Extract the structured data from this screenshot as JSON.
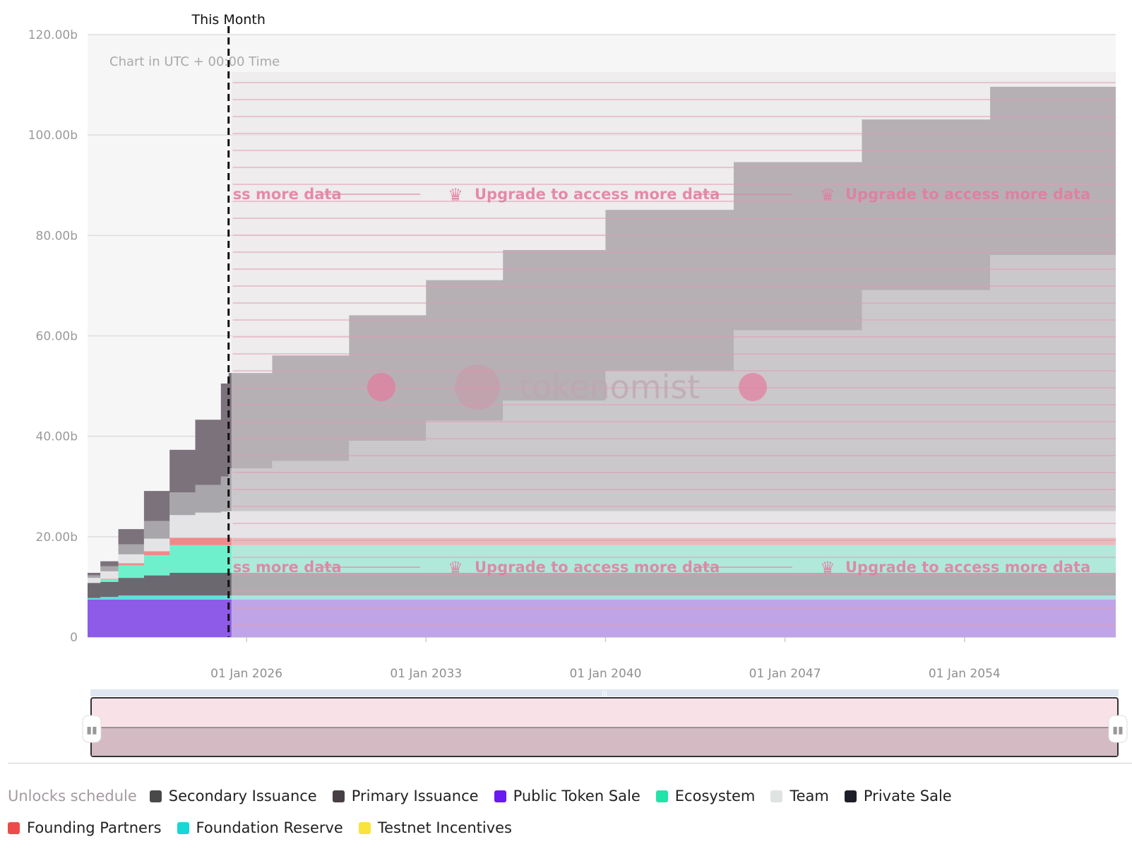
{
  "chart_data": {
    "type": "area",
    "stacked": true,
    "annotation": "Chart in UTC + 00:00 Time",
    "marker_label": "This Month",
    "marker_x": 2025.3,
    "x_ticks": [
      "01 Jan 2026",
      "01 Jan 2033",
      "01 Jan 2040",
      "01 Jan 2047",
      "01 Jan 2054"
    ],
    "x_tick_values": [
      2026,
      2033,
      2040,
      2047,
      2054
    ],
    "xlim": [
      2019.8,
      2059.9
    ],
    "ylim": [
      0,
      120
    ],
    "y_ticks": [
      "0",
      "20.00b",
      "40.00b",
      "60.00b",
      "80.00b",
      "100.00b",
      "120.00b"
    ],
    "y_tick_values": [
      0,
      20,
      40,
      60,
      80,
      100,
      120
    ],
    "upgrade_text": "Upgrade to access more data",
    "upgrade_fragment": "ss more data",
    "watermark": "tokenomist",
    "x": [
      2019.8,
      2020.3,
      2021.0,
      2022.0,
      2023.0,
      2024.0,
      2025.0,
      2025.3,
      2027.0,
      2030.0,
      2033.0,
      2036.0,
      2040.0,
      2045.0,
      2050.0,
      2055.0,
      2059.9
    ],
    "series": [
      {
        "name": "Public Token Sale",
        "color": "#8e5ae8",
        "values": [
          7.5,
          7.5,
          7.5,
          7.5,
          7.5,
          7.5,
          7.5,
          7.5,
          7.5,
          7.5,
          7.5,
          7.5,
          7.5,
          7.5,
          7.5,
          7.5,
          7.5
        ]
      },
      {
        "name": "Foundation Reserve",
        "color": "#5fe0d6",
        "values": [
          0.3,
          0.5,
          0.8,
          0.8,
          0.8,
          0.8,
          0.8,
          0.8,
          0.8,
          0.8,
          0.8,
          0.8,
          0.8,
          0.8,
          0.8,
          0.8,
          0.8
        ]
      },
      {
        "name": "Secondary Issuance",
        "color": "#6c6870",
        "values": [
          3.0,
          3.0,
          3.5,
          4.0,
          4.5,
          4.5,
          4.5,
          4.5,
          4.5,
          4.5,
          4.5,
          4.5,
          4.5,
          4.5,
          4.5,
          4.5,
          4.5
        ]
      },
      {
        "name": "Ecosystem",
        "color": "#6ef0cc",
        "values": [
          0.0,
          0.5,
          2.5,
          4.0,
          5.5,
          5.5,
          5.5,
          5.5,
          5.5,
          5.5,
          5.5,
          5.5,
          5.5,
          5.5,
          5.5,
          5.5,
          5.5
        ]
      },
      {
        "name": "Founding Partners",
        "color": "#ef8a8a",
        "values": [
          0.0,
          0.1,
          0.4,
          0.8,
          1.5,
          1.5,
          1.5,
          1.5,
          1.5,
          1.5,
          1.5,
          1.5,
          1.5,
          1.5,
          1.5,
          1.5,
          1.5
        ]
      },
      {
        "name": "Team",
        "color": "#e4e4e6",
        "values": [
          1.0,
          1.5,
          1.8,
          2.5,
          4.5,
          5.0,
          5.2,
          5.3,
          5.3,
          5.3,
          5.3,
          5.3,
          5.3,
          5.3,
          5.3,
          5.3,
          5.3
        ]
      },
      {
        "name": "Private Sale",
        "color": "#a9a6ab",
        "values": [
          0.5,
          1.0,
          2.0,
          3.5,
          4.5,
          5.5,
          7.0,
          8.5,
          10.0,
          14.0,
          18.0,
          22.0,
          28.0,
          36.0,
          44.0,
          51.0,
          54.0
        ]
      },
      {
        "name": "Primary Issuance",
        "color": "#7b727b",
        "values": [
          0.5,
          1.0,
          3.0,
          6.0,
          8.5,
          13.0,
          18.5,
          19.0,
          21.0,
          25.0,
          28.0,
          30.0,
          32.0,
          33.5,
          34.0,
          33.5,
          33.5
        ]
      },
      {
        "name": "Testnet Incentives",
        "color": "#ffe640",
        "values": [
          0,
          0,
          0,
          0,
          0,
          0,
          0,
          0,
          0,
          0,
          0,
          0,
          0,
          0,
          0,
          0,
          0
        ]
      }
    ]
  },
  "legend": {
    "title": "Unlocks schedule",
    "row1": [
      {
        "label": "Secondary Issuance",
        "color": "#494949"
      },
      {
        "label": "Primary Issuance",
        "color": "#473f45"
      },
      {
        "label": "Public Token Sale",
        "color": "#6a19f0"
      },
      {
        "label": "Ecosystem",
        "color": "#22e3a9"
      },
      {
        "label": "Team",
        "color": "#dfe3e1"
      },
      {
        "label": "Private Sale",
        "color": "#1c1f28"
      }
    ],
    "row2": [
      {
        "label": "Founding Partners",
        "color": "#ef4a4a"
      },
      {
        "label": "Foundation Reserve",
        "color": "#14d8d5"
      },
      {
        "label": "Testnet Incentives",
        "color": "#f8e43a"
      }
    ]
  }
}
